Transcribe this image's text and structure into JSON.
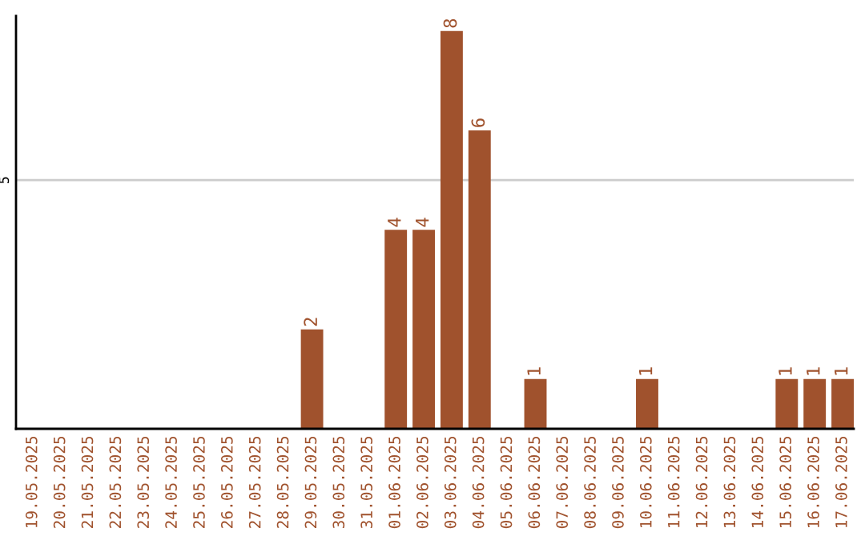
{
  "chart_data": {
    "type": "bar",
    "categories": [
      "19.05.2025",
      "20.05.2025",
      "21.05.2025",
      "22.05.2025",
      "23.05.2025",
      "24.05.2025",
      "25.05.2025",
      "26.05.2025",
      "27.05.2025",
      "28.05.2025",
      "29.05.2025",
      "30.05.2025",
      "31.05.2025",
      "01.06.2025",
      "02.06.2025",
      "03.06.2025",
      "04.06.2025",
      "05.06.2025",
      "06.06.2025",
      "07.06.2025",
      "08.06.2025",
      "09.06.2025",
      "10.06.2025",
      "11.06.2025",
      "12.06.2025",
      "13.06.2025",
      "14.06.2025",
      "15.06.2025",
      "16.06.2025",
      "17.06.2025"
    ],
    "values": [
      0,
      0,
      0,
      0,
      0,
      0,
      0,
      0,
      0,
      0,
      2,
      0,
      0,
      4,
      4,
      8,
      6,
      0,
      1,
      0,
      0,
      0,
      1,
      0,
      0,
      0,
      0,
      1,
      1,
      1
    ],
    "value_labels": [
      null,
      null,
      null,
      null,
      null,
      null,
      null,
      null,
      null,
      null,
      "2",
      null,
      null,
      "4",
      "4",
      "8",
      "6",
      null,
      "1",
      null,
      null,
      null,
      "1",
      null,
      null,
      null,
      null,
      "1",
      "1",
      "1"
    ],
    "color": "#a0522d",
    "ylim": [
      0,
      8.3
    ],
    "yticks": [
      5
    ],
    "grid": "y"
  }
}
